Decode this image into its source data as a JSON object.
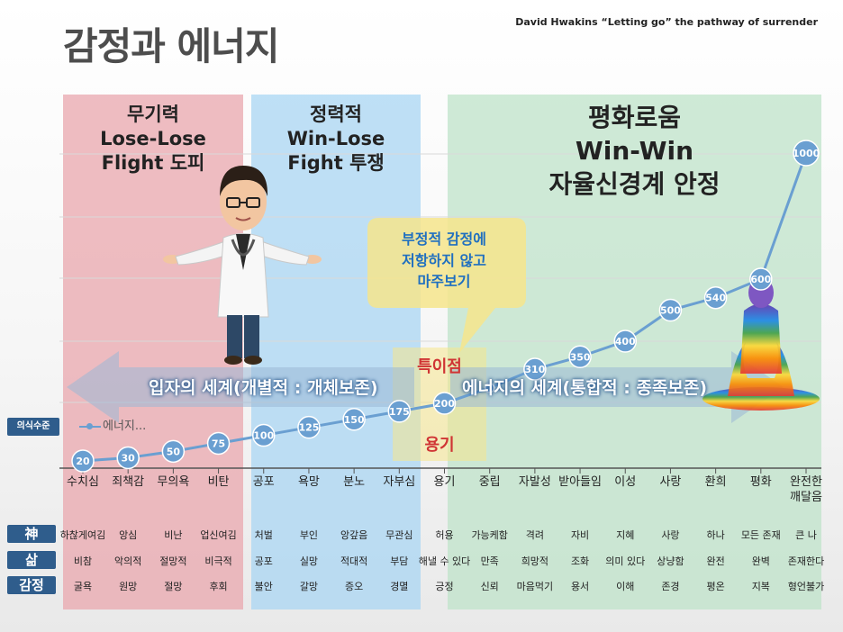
{
  "page": {
    "title": "감정과 에너지",
    "credit": "David Hwakins “Letting go” the pathway of surrender"
  },
  "zones": [
    {
      "lines": [
        "무기력",
        "Lose-Lose",
        "Flight 도피"
      ],
      "color": "#e9a7ad"
    },
    {
      "lines": [
        "정력적",
        "Win-Lose",
        "Fight 투쟁"
      ],
      "color": "#a9d6f3"
    },
    {
      "lines": [
        "평화로움",
        "Win-Win",
        "자율신경계 안정"
      ],
      "color": "#bfe3c9"
    }
  ],
  "bubble": {
    "lines": [
      "부정적 감정에",
      "저항하지 않고",
      "마주보기"
    ],
    "color": "#f6e58c"
  },
  "markers": {
    "singular_point": "특이점",
    "courage": "용기"
  },
  "arrows": {
    "left": "입자의 세계(개별적 : 개체보존)",
    "right": "에너지의 세계(통합적 : 종족보존)"
  },
  "row_labels": {
    "y_axis": "의식수준",
    "god": "神",
    "life": "삶",
    "emotion": "감정"
  },
  "chart_data": {
    "type": "line",
    "legend": "에너지...",
    "categories": [
      "수치심",
      "죄책감",
      "무의욕",
      "비탄",
      "공포",
      "욕망",
      "분노",
      "자부심",
      "용기",
      "중립",
      "자발성",
      "받아들임",
      "이성",
      "사랑",
      "환희",
      "평화",
      "완전한 깨달음"
    ],
    "series": [
      {
        "values": [
          20,
          30,
          50,
          75,
          100,
          125,
          150,
          175,
          200,
          250,
          310,
          350,
          400,
          500,
          540,
          600,
          1000
        ],
        "labels": [
          "20",
          "30",
          "50",
          "75",
          "100",
          "125",
          "150",
          "175",
          "200",
          "",
          "310",
          "350",
          "400",
          "500",
          "540",
          "600",
          "1000"
        ]
      }
    ],
    "ylim": [
      0,
      1000
    ],
    "line_color": "#6a9fd1",
    "grid": true
  },
  "table": {
    "god": [
      "하찮게여김",
      "앙심",
      "비난",
      "업신여김",
      "처벌",
      "부인",
      "앙갚음",
      "무관심",
      "허용",
      "가능케함",
      "격려",
      "자비",
      "지혜",
      "사랑",
      "하나",
      "모든 존재",
      "큰 나"
    ],
    "life": [
      "비참",
      "악의적",
      "절망적",
      "비극적",
      "공포",
      "실망",
      "적대적",
      "부담",
      "해낼 수 있다",
      "만족",
      "희망적",
      "조화",
      "의미 있다",
      "상냥함",
      "완전",
      "완벽",
      "존재한다"
    ],
    "emotion": [
      "굴욕",
      "원망",
      "절망",
      "후회",
      "불안",
      "갈망",
      "증오",
      "경멸",
      "긍정",
      "신뢰",
      "마음먹기",
      "용서",
      "이해",
      "존경",
      "평온",
      "지복",
      "형언불가"
    ]
  }
}
